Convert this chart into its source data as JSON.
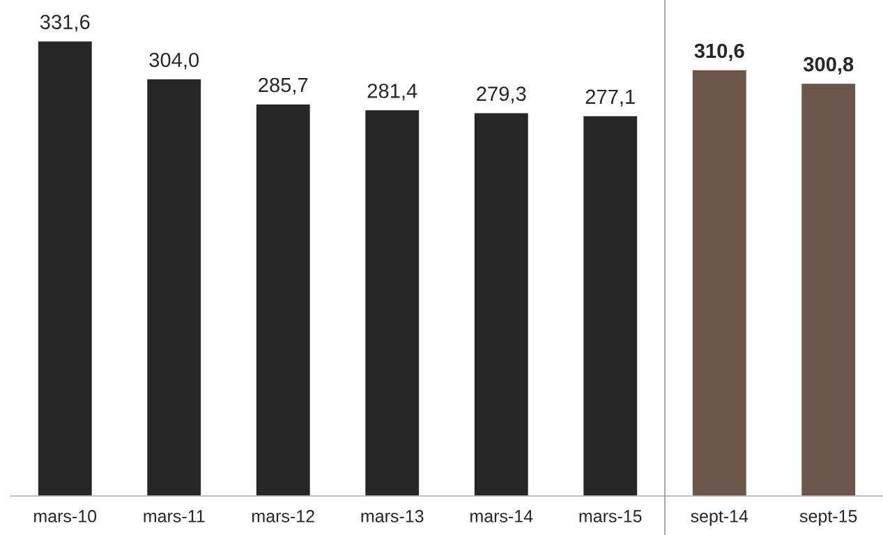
{
  "chart_data": {
    "type": "bar",
    "categories": [
      "mars-10",
      "mars-11",
      "mars-12",
      "mars-13",
      "mars-14",
      "mars-15",
      "sept-14",
      "sept-15"
    ],
    "series": [
      {
        "color": "#262626",
        "values": [
          331.6,
          304.0,
          285.7,
          281.4,
          279.3,
          277.1,
          null,
          null
        ],
        "value_labels": [
          "331,6",
          "304,0",
          "285,7",
          "281,4",
          "279,3",
          "277,1",
          null,
          null
        ]
      },
      {
        "color": "#6b5549",
        "values": [
          null,
          null,
          null,
          null,
          null,
          null,
          310.6,
          300.8
        ],
        "value_labels": [
          null,
          null,
          null,
          null,
          null,
          null,
          "310,6",
          "300,8"
        ]
      }
    ],
    "tick_labels": "x",
    "legend": false
  }
}
